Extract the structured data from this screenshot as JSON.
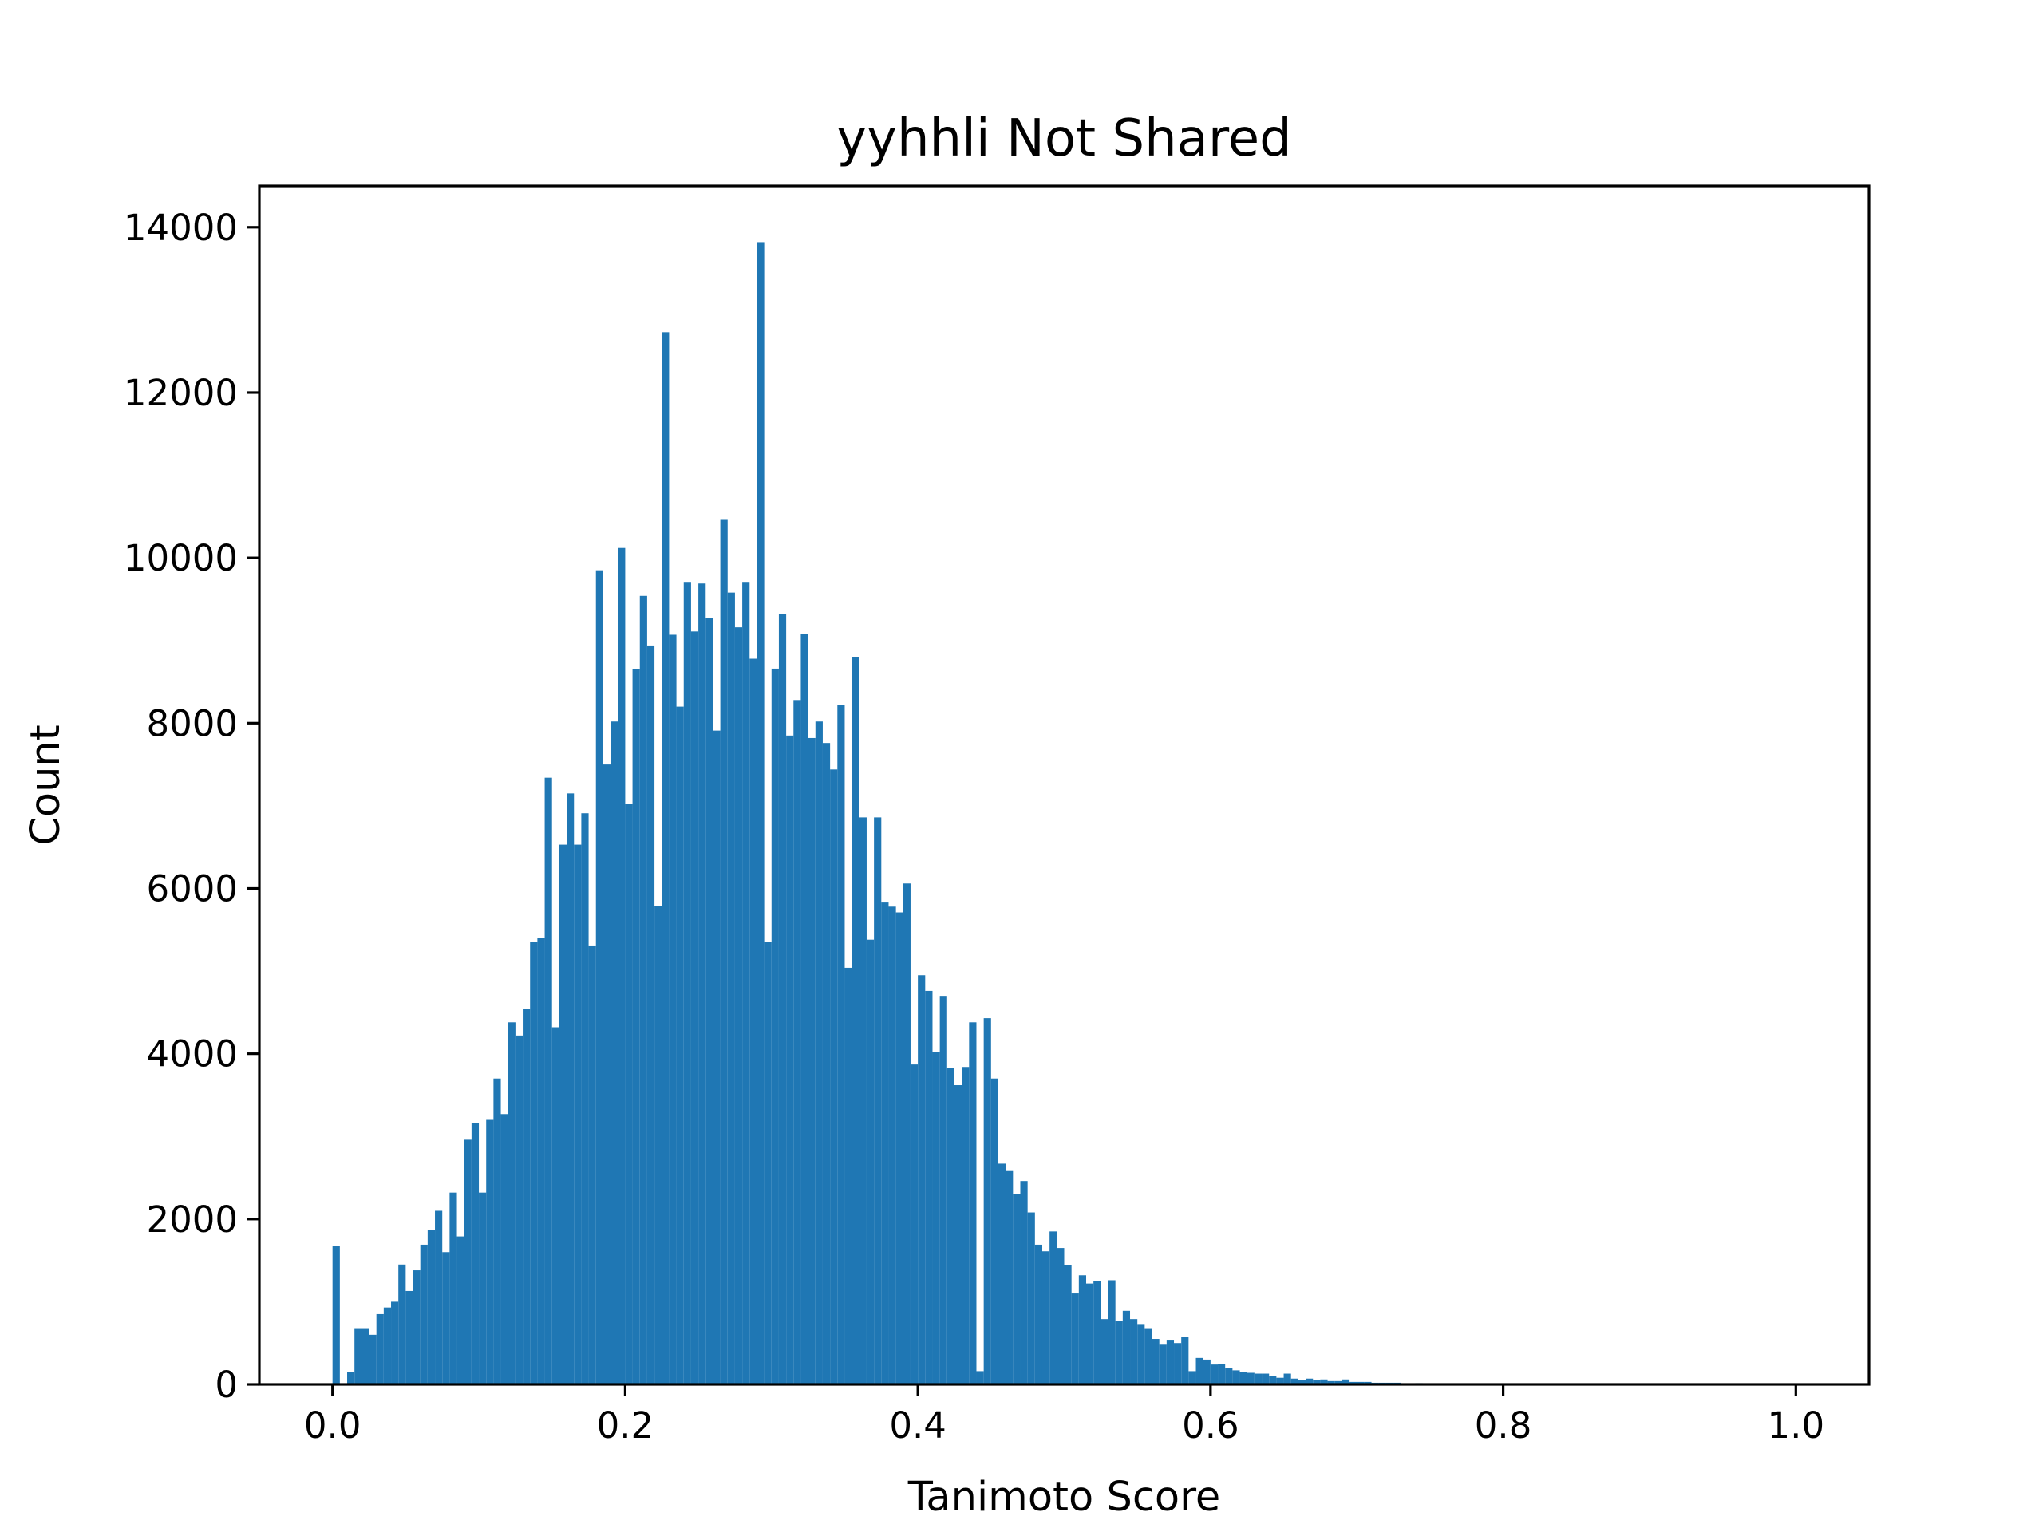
{
  "chart_data": {
    "type": "bar",
    "title": "yyhhli Not Shared",
    "xlabel": "Tanimoto Score",
    "ylabel": "Count",
    "xlim": [
      -0.05,
      1.05
    ],
    "ylim": [
      0,
      14500
    ],
    "xticks": [
      0.0,
      0.2,
      0.4,
      0.6,
      0.8,
      1.0
    ],
    "xtick_labels": [
      "0.0",
      "0.2",
      "0.4",
      "0.6",
      "0.8",
      "1.0"
    ],
    "yticks": [
      0,
      2000,
      4000,
      6000,
      8000,
      10000,
      12000,
      14000
    ],
    "ytick_labels": [
      "0",
      "2000",
      "4000",
      "6000",
      "8000",
      "10000",
      "12000",
      "14000"
    ],
    "bar_color": "#1f77b4",
    "grid": false,
    "legend": "none",
    "bin_width": 0.005,
    "bin_start": 0.0,
    "values": [
      1670,
      0,
      150,
      680,
      680,
      600,
      850,
      930,
      1000,
      1450,
      1130,
      1380,
      1690,
      1870,
      2100,
      1600,
      2320,
      1790,
      2960,
      3160,
      2320,
      3200,
      3700,
      3270,
      4380,
      4220,
      4540,
      5350,
      5400,
      7340,
      4320,
      6530,
      7150,
      6530,
      6910,
      5310,
      9850,
      7500,
      8020,
      10120,
      7020,
      8650,
      9540,
      8940,
      5790,
      12730,
      9070,
      8200,
      9700,
      9110,
      9690,
      9270,
      7910,
      10460,
      9580,
      9160,
      9700,
      8780,
      13820,
      5350,
      8660,
      9320,
      7850,
      8280,
      9080,
      7820,
      8020,
      7760,
      7440,
      8220,
      5040,
      8800,
      6860,
      5380,
      6860,
      5830,
      5780,
      5710,
      6060,
      3870,
      4950,
      4760,
      4020,
      4700,
      3830,
      3620,
      3840,
      4380,
      160,
      4430,
      3700,
      2670,
      2590,
      2300,
      2460,
      2080,
      1690,
      1610,
      1850,
      1650,
      1440,
      1100,
      1320,
      1220,
      1250,
      790,
      1260,
      770,
      890,
      790,
      730,
      680,
      550,
      480,
      540,
      500,
      570,
      160,
      320,
      300,
      240,
      250,
      200,
      170,
      150,
      140,
      130,
      130,
      100,
      80,
      130,
      70,
      50,
      70,
      50,
      60,
      40,
      40,
      60,
      30,
      30,
      30,
      20,
      20,
      20,
      20,
      10,
      10,
      15,
      10,
      10,
      10,
      10,
      10,
      8,
      8,
      8,
      8,
      8,
      5,
      5,
      5,
      5,
      5,
      5,
      5,
      5,
      5,
      5,
      5,
      5,
      5,
      5,
      5,
      5,
      3,
      3,
      3,
      3,
      3,
      3,
      3,
      3,
      3,
      3,
      3,
      3,
      3,
      3,
      3,
      3,
      3,
      3,
      3,
      3,
      3,
      3,
      3,
      3,
      3,
      3,
      3,
      3,
      3,
      3,
      3,
      3,
      3,
      3,
      3,
      3,
      3,
      3
    ]
  }
}
